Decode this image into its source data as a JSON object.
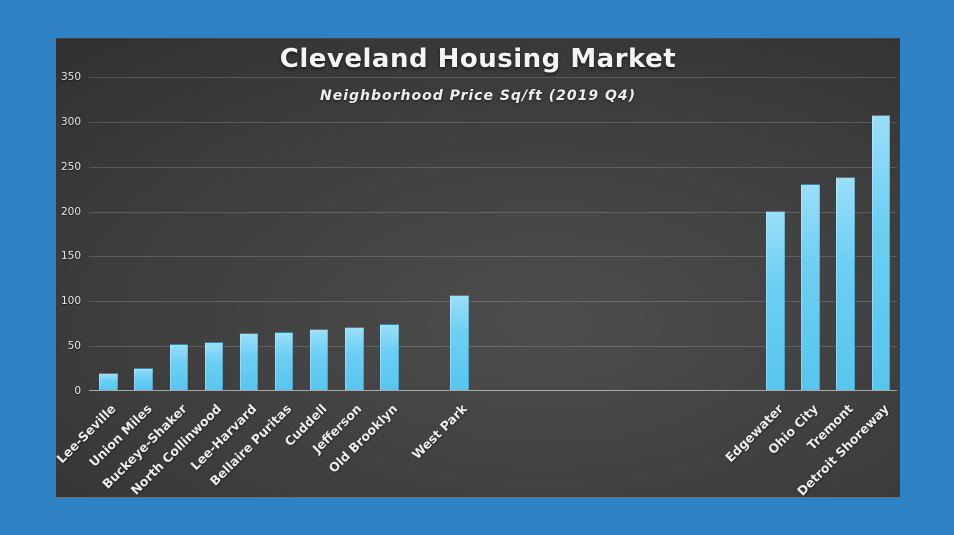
{
  "slide": {
    "title": "Cleveland Housing Market",
    "subtitle": "Neighborhood Price Sq/ft (2019 Q4)"
  },
  "colors": {
    "frame_blue": "#2F83C5",
    "panel_dark": "#292929",
    "panel_light": "#4D4D4D",
    "bar_light": "#9ADFF8",
    "bar_main": "#6CCFF4",
    "bar_deep": "#58C5EE",
    "gridline": "rgba(255,255,255,0.16)",
    "axis_line": "#A9A9A9",
    "label_text": "#EDEDEB"
  },
  "chart_data": {
    "type": "bar",
    "title": "Cleveland Housing Market",
    "subtitle": "Neighborhood Price Sq/ft (2019 Q4)",
    "xlabel": "",
    "ylabel": "",
    "ylim": [
      0,
      350
    ],
    "yticks": [
      0,
      50,
      100,
      150,
      200,
      250,
      300,
      350
    ],
    "grid": true,
    "legend": false,
    "total_slots": 23,
    "points": [
      {
        "label": "Lee-Seville",
        "value": 18,
        "slot": 0
      },
      {
        "label": "Union Miles",
        "value": 23,
        "slot": 1
      },
      {
        "label": "Buckeye-Shaker",
        "value": 50,
        "slot": 2
      },
      {
        "label": "North Collinwood",
        "value": 52,
        "slot": 3
      },
      {
        "label": "Lee-Harvard",
        "value": 62,
        "slot": 4
      },
      {
        "label": "Bellaire Puritas",
        "value": 64,
        "slot": 5
      },
      {
        "label": "Cuddell",
        "value": 67,
        "slot": 6
      },
      {
        "label": "Jefferson",
        "value": 69,
        "slot": 7
      },
      {
        "label": "Old Brooklyn",
        "value": 72,
        "slot": 8
      },
      {
        "label": "West Park",
        "value": 105,
        "slot": 10
      },
      {
        "label": "Edgewater",
        "value": 198,
        "slot": 19
      },
      {
        "label": "Ohio City",
        "value": 229,
        "slot": 20
      },
      {
        "label": "Tremont",
        "value": 236,
        "slot": 21
      },
      {
        "label": "Detroit Shoreway",
        "value": 305,
        "slot": 22
      }
    ]
  }
}
